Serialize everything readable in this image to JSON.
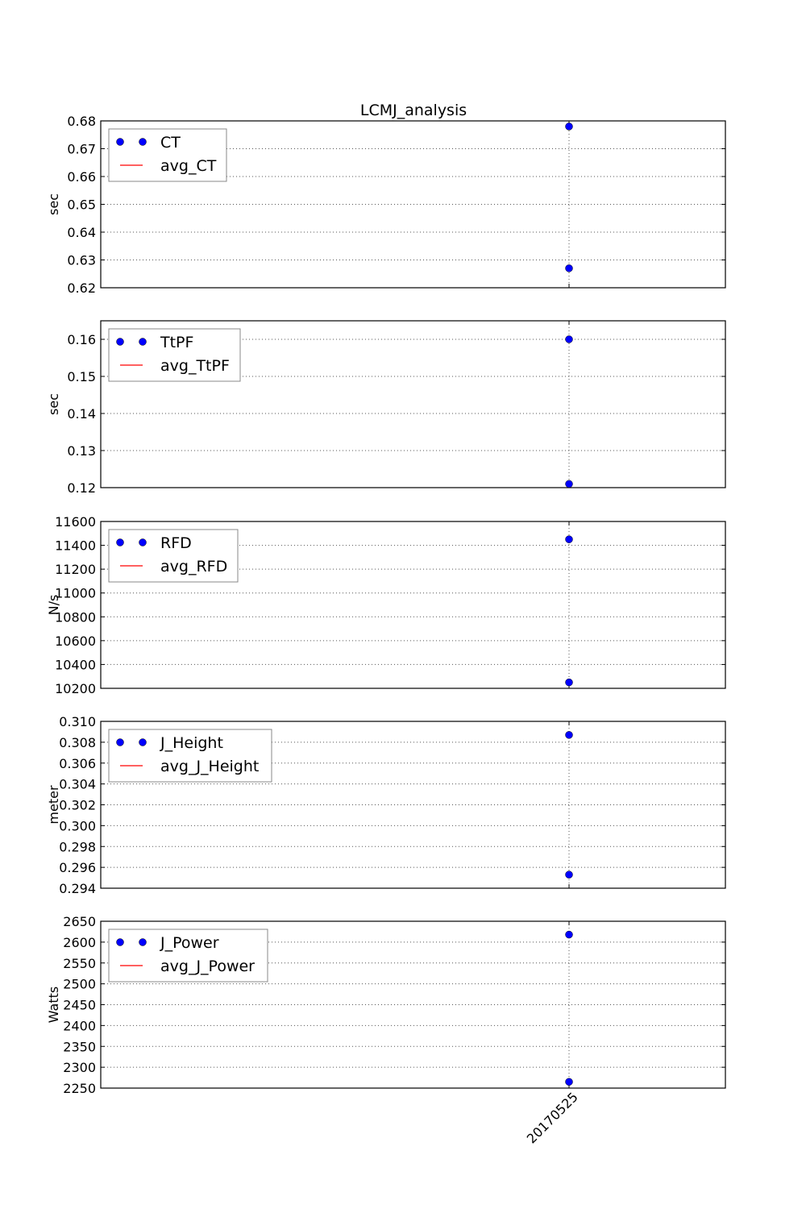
{
  "figure_title": "LCMJ_analysis",
  "colors": {
    "marker": "#0000ff",
    "avg_line": "#ff0000",
    "grid": "#555555",
    "axis": "#000000",
    "legend_border": "#888888"
  },
  "x_tick_labels": [
    "20170525"
  ],
  "chart_data": [
    {
      "type": "scatter",
      "ylabel": "sec",
      "ylim": [
        0.62,
        0.68
      ],
      "yticks": [
        0.62,
        0.63,
        0.64,
        0.65,
        0.66,
        0.67,
        0.68
      ],
      "ytick_decimals": 2,
      "x": [
        "20170525",
        "20170525"
      ],
      "series": [
        {
          "name": "CT",
          "values": [
            0.678,
            0.627
          ]
        },
        {
          "name": "avg_CT",
          "values": []
        }
      ],
      "grid": true,
      "legend": "top-left"
    },
    {
      "type": "scatter",
      "ylabel": "sec",
      "ylim": [
        0.12,
        0.165
      ],
      "yticks": [
        0.12,
        0.13,
        0.14,
        0.15,
        0.16
      ],
      "ytick_decimals": 2,
      "x": [
        "20170525",
        "20170525"
      ],
      "series": [
        {
          "name": "TtPF",
          "values": [
            0.16,
            0.121
          ]
        },
        {
          "name": "avg_TtPF",
          "values": []
        }
      ],
      "grid": true,
      "legend": "top-left"
    },
    {
      "type": "scatter",
      "ylabel": "N/s",
      "ylim": [
        10200,
        11600
      ],
      "yticks": [
        10200,
        10400,
        10600,
        10800,
        11000,
        11200,
        11400,
        11600
      ],
      "ytick_decimals": 0,
      "x": [
        "20170525",
        "20170525"
      ],
      "series": [
        {
          "name": "RFD",
          "values": [
            11450,
            10250
          ]
        },
        {
          "name": "avg_RFD",
          "values": []
        }
      ],
      "grid": true,
      "legend": "top-left"
    },
    {
      "type": "scatter",
      "ylabel": "meter",
      "ylim": [
        0.294,
        0.31
      ],
      "yticks": [
        0.294,
        0.296,
        0.298,
        0.3,
        0.302,
        0.304,
        0.306,
        0.308,
        0.31
      ],
      "ytick_decimals": 3,
      "x": [
        "20170525",
        "20170525"
      ],
      "series": [
        {
          "name": "J_Height",
          "values": [
            0.3087,
            0.2953
          ]
        },
        {
          "name": "avg_J_Height",
          "values": []
        }
      ],
      "grid": true,
      "legend": "top-left"
    },
    {
      "type": "scatter",
      "ylabel": "Watts",
      "ylim": [
        2250,
        2650
      ],
      "yticks": [
        2250,
        2300,
        2350,
        2400,
        2450,
        2500,
        2550,
        2600,
        2650
      ],
      "ytick_decimals": 0,
      "x": [
        "20170525",
        "20170525"
      ],
      "series": [
        {
          "name": "J_Power",
          "values": [
            2618,
            2265
          ]
        },
        {
          "name": "avg_J_Power",
          "values": []
        }
      ],
      "grid": true,
      "legend": "top-left"
    }
  ]
}
